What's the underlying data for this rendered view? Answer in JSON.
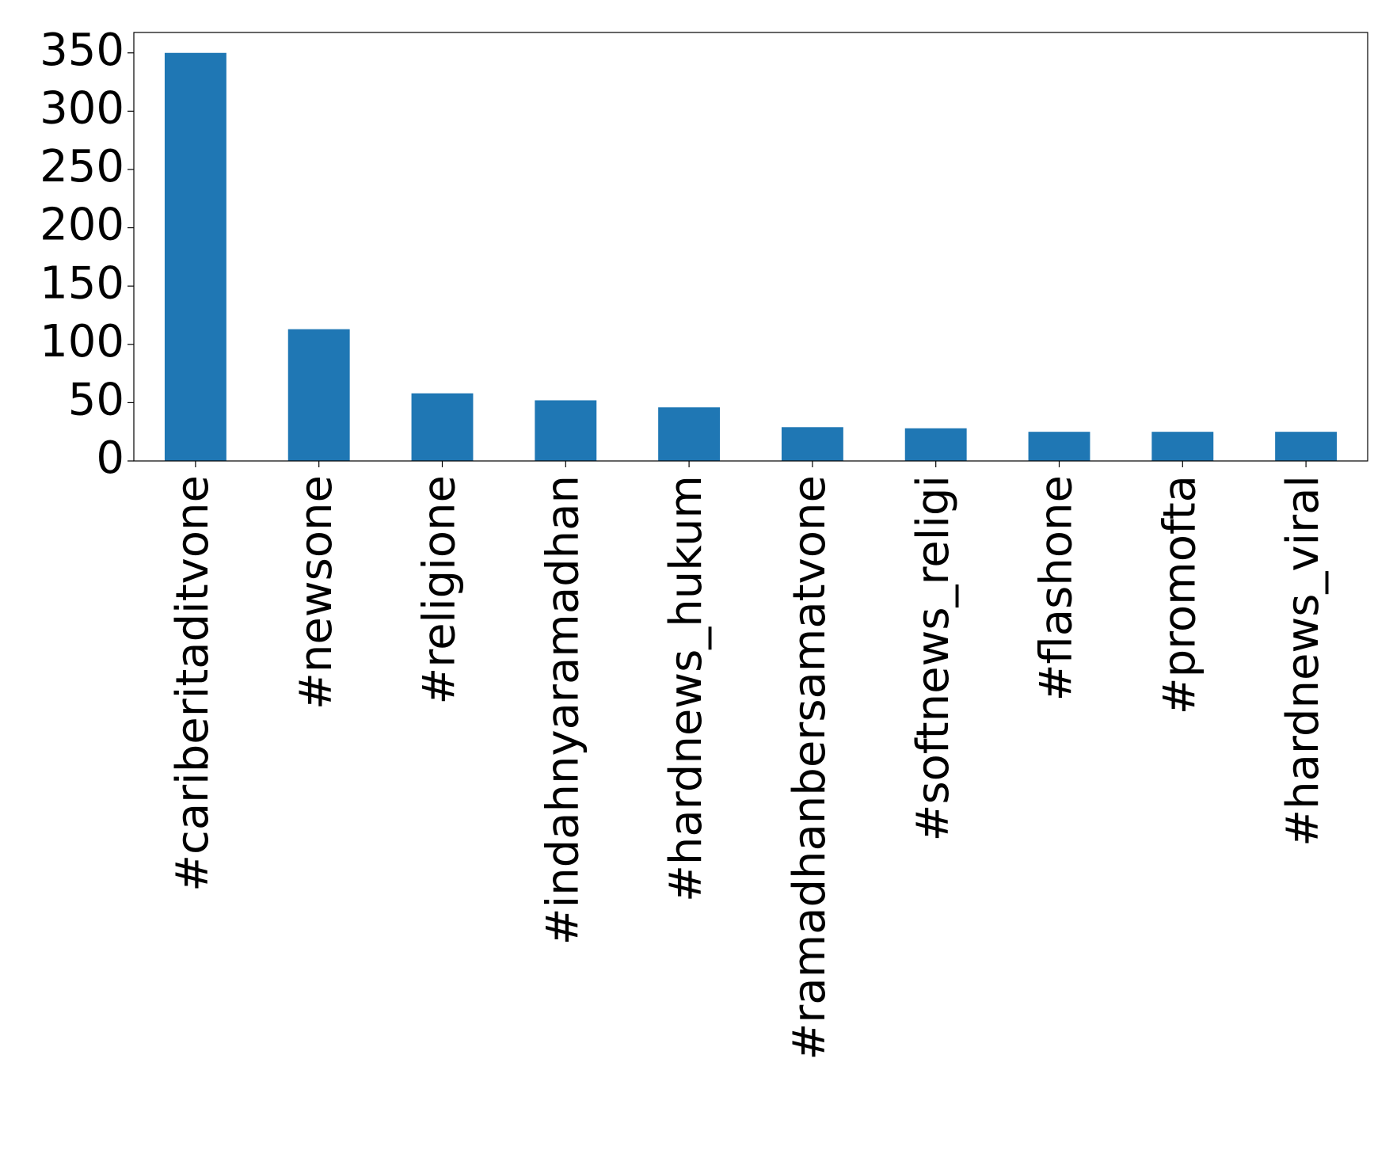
{
  "chart_data": {
    "type": "bar",
    "categories": [
      "#cariberitaditvone",
      "#newsone",
      "#religione",
      "#indahnyaramadhan",
      "#hardnews_hukum",
      "#ramadhanbersamatvone",
      "#softnews_religi",
      "#flashone",
      "#promofta",
      "#hardnews_viral"
    ],
    "values": [
      350,
      113,
      58,
      52,
      46,
      29,
      28,
      25,
      25,
      25
    ],
    "color": "#1f77b4",
    "ylim": [
      0,
      367.5
    ],
    "yticks": [
      0,
      50,
      100,
      150,
      200,
      250,
      300,
      350
    ],
    "grid": false
  }
}
